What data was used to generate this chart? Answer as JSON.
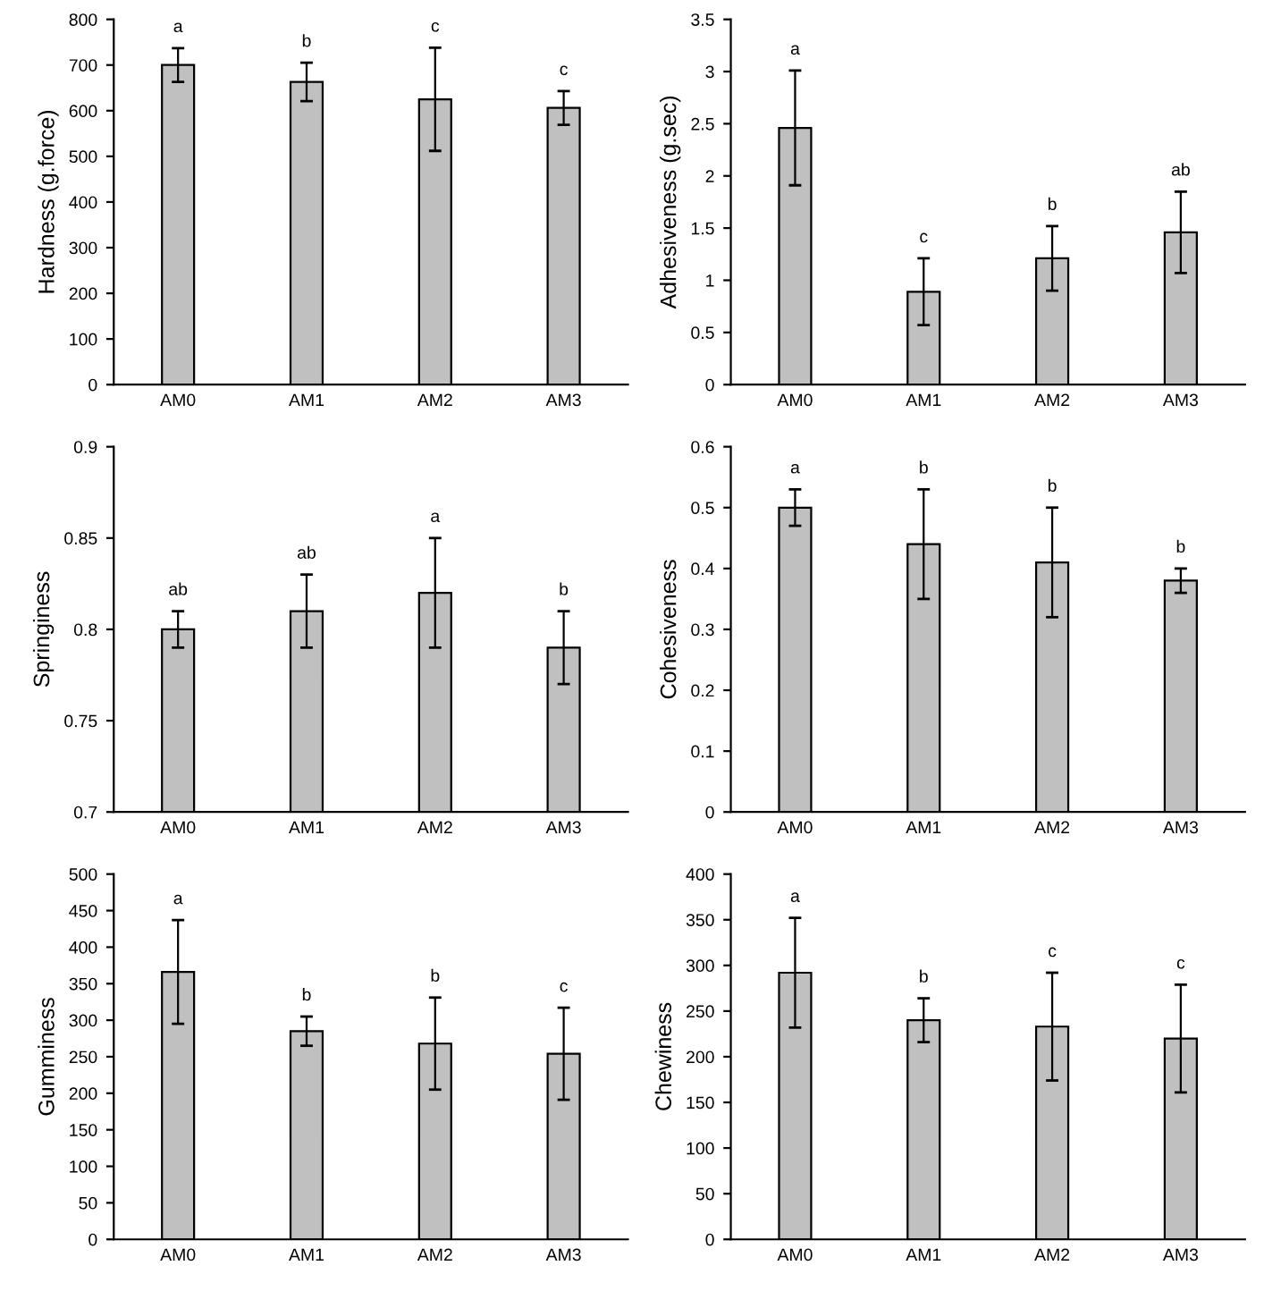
{
  "chart_data": [
    {
      "type": "bar",
      "ylabel": "Hardness (g.force)",
      "categories": [
        "AM0",
        "AM1",
        "AM2",
        "AM3"
      ],
      "values": [
        700,
        663,
        625,
        606
      ],
      "errors": [
        37,
        42,
        113,
        37
      ],
      "color": "#c0c0c0",
      "ylim": [
        0,
        800
      ],
      "yticks": [
        0,
        100,
        200,
        300,
        400,
        500,
        600,
        700,
        800
      ],
      "grid": false,
      "annotations": [
        {
          "text": "a",
          "x": "AM0",
          "y": 737
        },
        {
          "text": "b",
          "x": "AM1",
          "y": 705
        },
        {
          "text": "c",
          "x": "AM2",
          "y": 738
        },
        {
          "text": "c",
          "x": "AM3",
          "y": 643
        }
      ]
    },
    {
      "type": "bar",
      "ylabel": "Adhesiveness (g.sec)",
      "categories": [
        "AM0",
        "AM1",
        "AM2",
        "AM3"
      ],
      "values": [
        2.46,
        0.89,
        1.21,
        1.46
      ],
      "errors": [
        0.55,
        0.32,
        0.31,
        0.39
      ],
      "color": "#c0c0c0",
      "ylim": [
        0,
        3.5
      ],
      "yticks": [
        0,
        {
          "value": 0.5,
          "label": "0.5"
        },
        1,
        {
          "value": 1.5,
          "label": "1.5"
        },
        2,
        {
          "value": 2.5,
          "label": "2.5"
        },
        3,
        {
          "value": 3.5,
          "label": "3.5"
        }
      ],
      "grid": false,
      "annotations": [
        {
          "text": "a",
          "x": "AM0",
          "y": 3.01
        },
        {
          "text": "c",
          "x": "AM1",
          "y": 1.21
        },
        {
          "text": "b",
          "x": "AM2",
          "y": 1.52
        },
        {
          "text": "ab",
          "x": "AM3",
          "y": 1.85
        }
      ]
    },
    {
      "type": "bar",
      "ylabel": "Springiness",
      "categories": [
        "AM0",
        "AM1",
        "AM2",
        "AM3"
      ],
      "values": [
        0.8,
        0.81,
        0.82,
        0.79
      ],
      "errors": [
        0.01,
        0.02,
        0.03,
        0.02
      ],
      "color": "#c0c0c0",
      "ylim": [
        0.7,
        0.9
      ],
      "yticks": [
        0.7,
        0.75,
        0.8,
        0.85,
        0.9
      ],
      "grid": false,
      "annotations": [
        {
          "text": "ab",
          "x": "AM0",
          "y": 0.81
        },
        {
          "text": "ab",
          "x": "AM1",
          "y": 0.83
        },
        {
          "text": "a",
          "x": "AM2",
          "y": 0.85
        },
        {
          "text": "b",
          "x": "AM3",
          "y": 0.81
        }
      ]
    },
    {
      "type": "bar",
      "ylabel": "Cohesiveness",
      "categories": [
        "AM0",
        "AM1",
        "AM2",
        "AM3"
      ],
      "values": [
        0.5,
        0.44,
        0.41,
        0.38
      ],
      "errors": [
        0.03,
        0.09,
        0.09,
        0.02
      ],
      "color": "#c0c0c0",
      "ylim": [
        0,
        0.6
      ],
      "yticks": [
        0,
        0.1,
        0.2,
        0.3,
        0.4,
        0.5,
        0.6
      ],
      "grid": false,
      "annotations": [
        {
          "text": "a",
          "x": "AM0",
          "y": 0.53
        },
        {
          "text": "b",
          "x": "AM1",
          "y": 0.53
        },
        {
          "text": "b",
          "x": "AM2",
          "y": 0.5
        },
        {
          "text": "b",
          "x": "AM3",
          "y": 0.4
        }
      ]
    },
    {
      "type": "bar",
      "ylabel": "Gumminess",
      "categories": [
        "AM0",
        "AM1",
        "AM2",
        "AM3"
      ],
      "values": [
        366,
        285,
        268,
        254
      ],
      "errors": [
        71,
        20,
        63,
        63
      ],
      "color": "#c0c0c0",
      "ylim": [
        0,
        500
      ],
      "yticks": [
        0,
        50,
        100,
        150,
        200,
        250,
        300,
        350,
        400,
        450,
        500
      ],
      "grid": false,
      "annotations": [
        {
          "text": "a",
          "x": "AM0",
          "y": 437
        },
        {
          "text": "b",
          "x": "AM1",
          "y": 305
        },
        {
          "text": "b",
          "x": "AM2",
          "y": 331
        },
        {
          "text": "c",
          "x": "AM3",
          "y": 317
        }
      ]
    },
    {
      "type": "bar",
      "ylabel": "Chewiness",
      "categories": [
        "AM0",
        "AM1",
        "AM2",
        "AM3"
      ],
      "values": [
        292,
        240,
        233,
        220
      ],
      "errors": [
        60,
        24,
        59,
        59
      ],
      "color": "#c0c0c0",
      "ylim": [
        0,
        400
      ],
      "yticks": [
        0,
        50,
        100,
        150,
        200,
        250,
        300,
        350,
        400
      ],
      "grid": false,
      "annotations": [
        {
          "text": "a",
          "x": "AM0",
          "y": 352
        },
        {
          "text": "b",
          "x": "AM1",
          "y": 264
        },
        {
          "text": "c",
          "x": "AM2",
          "y": 292
        },
        {
          "text": "c",
          "x": "AM3",
          "y": 279
        }
      ]
    }
  ]
}
